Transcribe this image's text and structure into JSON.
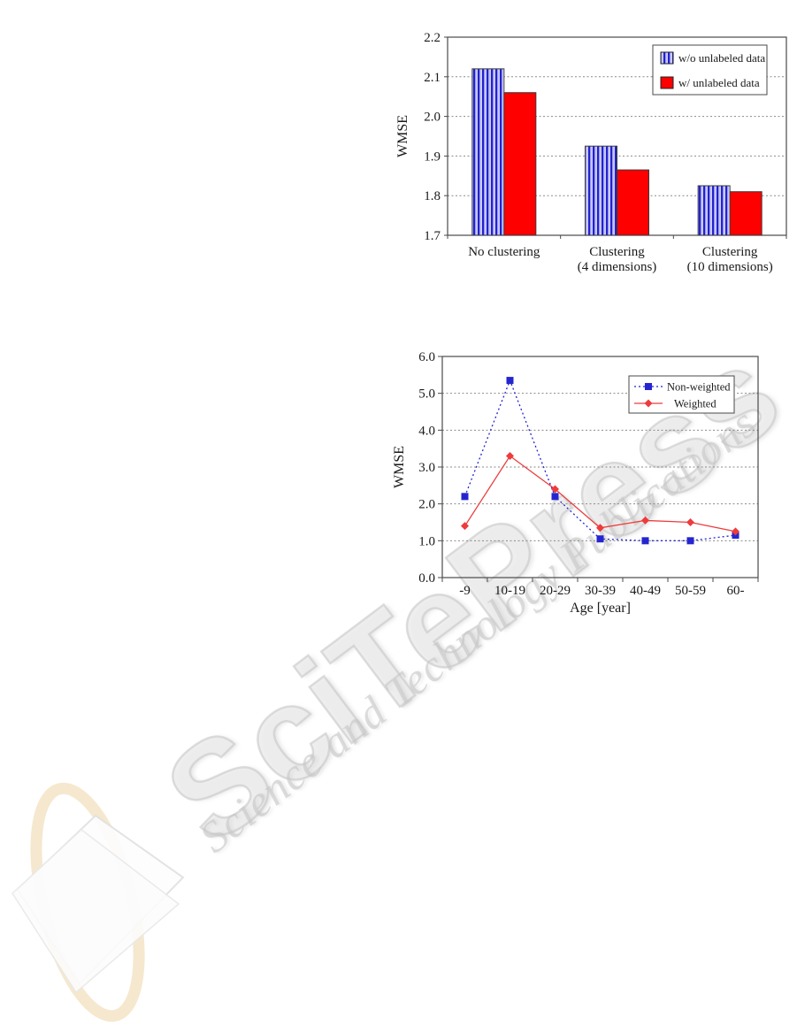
{
  "watermark": {
    "title": "SciTePress",
    "subtitle": "Science and Technology Publications"
  },
  "logo": {
    "ring_color": "#f3e2c2",
    "page_fill": "#fdfdfd",
    "page_border": "#e2e2e2"
  },
  "chart_data": [
    {
      "type": "bar",
      "title": "",
      "xlabel": "",
      "ylabel": "WMSE",
      "ylim": [
        1.7,
        2.2
      ],
      "yticks": [
        "1.7",
        "1.8",
        "1.9",
        "2.0",
        "2.1",
        "2.2"
      ],
      "grid": true,
      "legend_position": "top-right",
      "categories": [
        [
          "No clustering"
        ],
        [
          "Clustering",
          "(4 dimensions)"
        ],
        [
          "Clustering",
          "(10 dimensions)"
        ]
      ],
      "series": [
        {
          "name": "w/o unlabeled data",
          "style": "striped",
          "color": "#2222cc",
          "color2": "#9a9af5",
          "values": [
            2.12,
            1.925,
            1.825
          ]
        },
        {
          "name": "w/ unlabeled data",
          "style": "solid",
          "color": "#fe0000",
          "values": [
            2.06,
            1.865,
            1.81
          ]
        }
      ]
    },
    {
      "type": "line",
      "title": "",
      "xlabel": "Age [year]",
      "ylabel": "WMSE",
      "ylim": [
        0.0,
        6.0
      ],
      "yticks": [
        "0.0",
        "1.0",
        "2.0",
        "3.0",
        "4.0",
        "5.0",
        "6.0"
      ],
      "grid": true,
      "legend_position": "top-right",
      "categories": [
        "-9",
        "10-19",
        "20-29",
        "30-39",
        "40-49",
        "50-59",
        "60-"
      ],
      "series": [
        {
          "name": "Non-weighted",
          "color": "#2525d0",
          "marker": "square",
          "line": "dotted",
          "values": [
            2.2,
            5.35,
            2.2,
            1.05,
            1.0,
            1.0,
            1.15
          ]
        },
        {
          "name": "Weighted",
          "color": "#ee3b3b",
          "marker": "diamond",
          "line": "solid",
          "values": [
            1.4,
            3.3,
            2.4,
            1.35,
            1.55,
            1.5,
            1.25
          ]
        }
      ]
    }
  ]
}
